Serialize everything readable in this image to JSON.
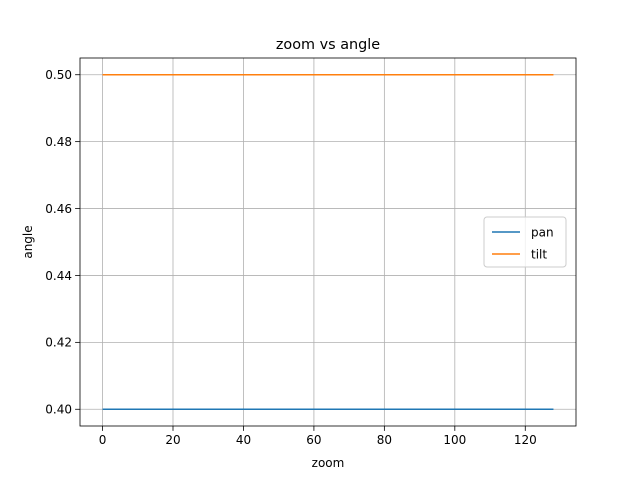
{
  "chart_data": {
    "type": "line",
    "title": "zoom vs angle",
    "xlabel": "zoom",
    "ylabel": "angle",
    "xlim": [
      -6.4,
      134.4
    ],
    "ylim": [
      0.395,
      0.505
    ],
    "xticks": [
      0,
      20,
      40,
      60,
      80,
      100,
      120
    ],
    "yticks": [
      0.4,
      0.42,
      0.44,
      0.46,
      0.48,
      0.5
    ],
    "grid": true,
    "legend": "center-right",
    "series": [
      {
        "name": "pan",
        "color": "#1f77b4",
        "x": [
          0,
          128
        ],
        "y": [
          0.4,
          0.4
        ]
      },
      {
        "name": "tilt",
        "color": "#ff7f0e",
        "x": [
          0,
          128
        ],
        "y": [
          0.5,
          0.5
        ]
      }
    ]
  }
}
